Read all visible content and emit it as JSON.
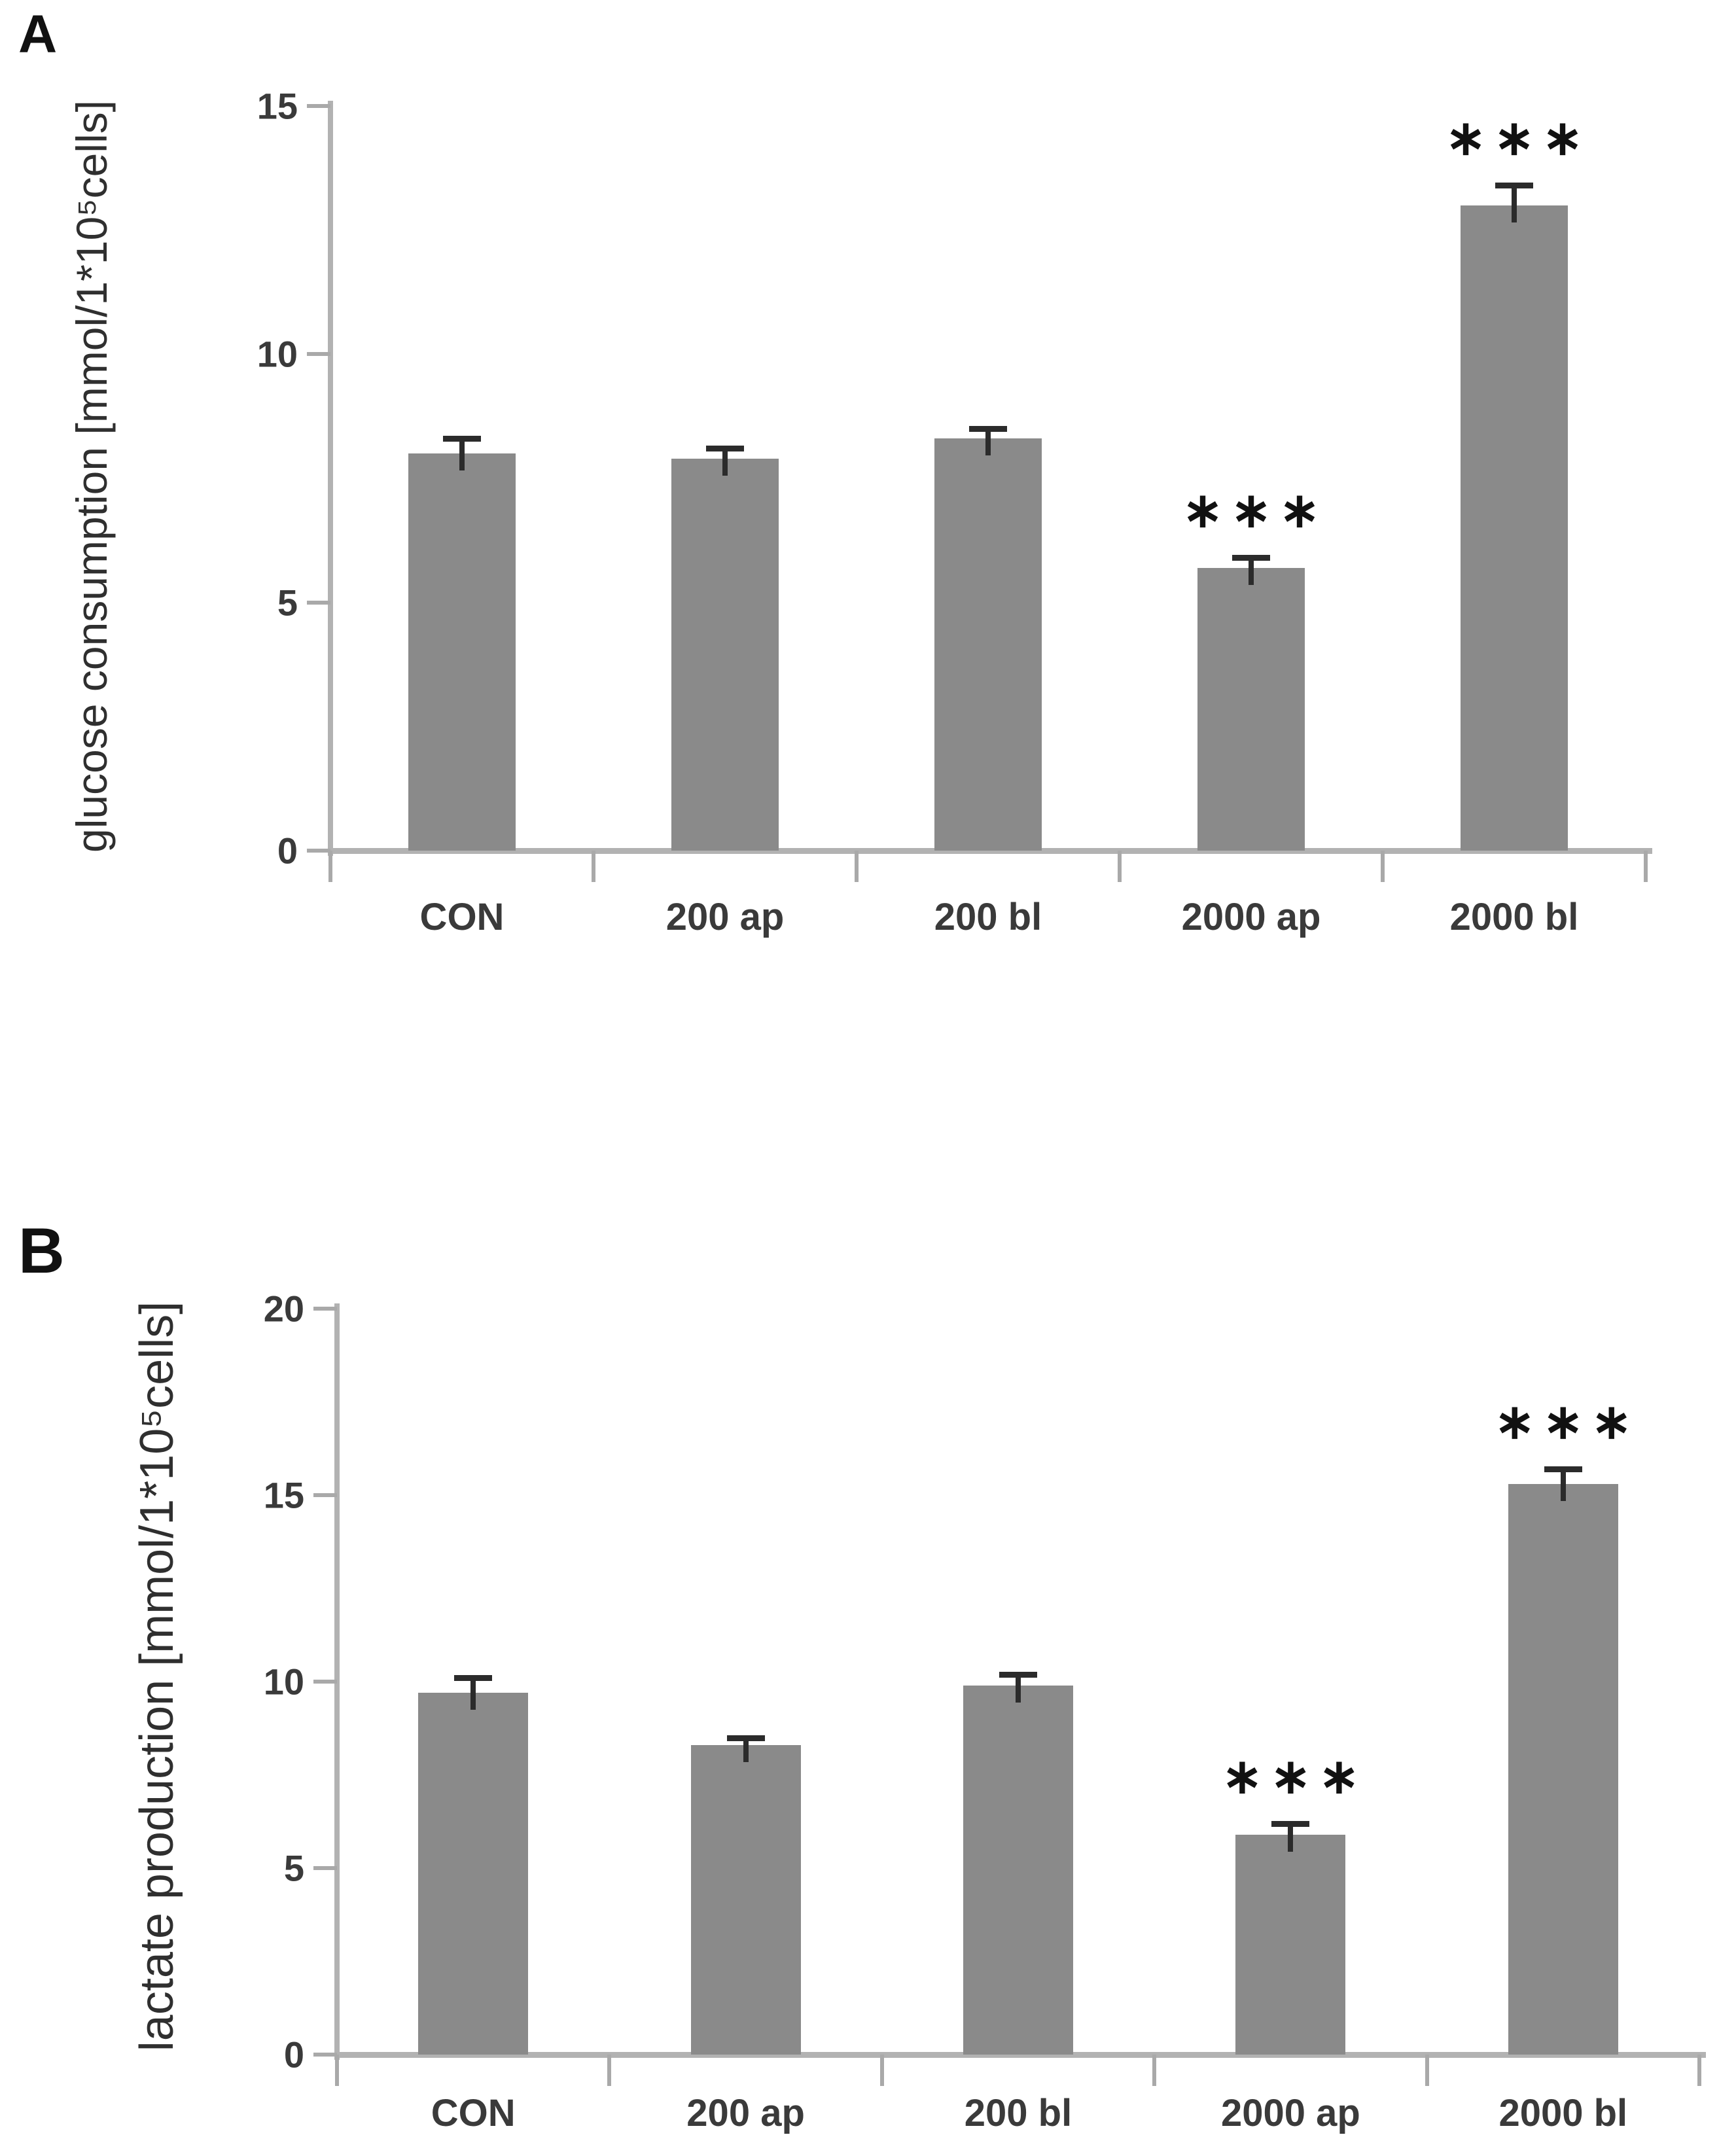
{
  "panels": [
    {
      "letter": "A"
    },
    {
      "letter": "B"
    }
  ],
  "chart_data": [
    {
      "type": "bar",
      "title": "",
      "ylabel": "glucose consumption [mmol/1*10⁵cells]",
      "xlabel": "",
      "categories": [
        "CON",
        "200 ap",
        "200 bl",
        "2000 ap",
        "2000 bl"
      ],
      "values": [
        8.0,
        7.9,
        8.3,
        5.7,
        13.0
      ],
      "errors": [
        0.3,
        0.2,
        0.2,
        0.2,
        0.4
      ],
      "significance": [
        "",
        "",
        "",
        "***",
        "***"
      ],
      "ylim": [
        0,
        15
      ],
      "yticks": [
        0,
        5,
        10,
        15
      ],
      "grid": "off",
      "legend": "none",
      "bar_color": "#8a8a8a",
      "axis_color": "#b2b2b2",
      "error_bar_color": "#2b2b2b"
    },
    {
      "type": "bar",
      "title": "",
      "ylabel": "lactate production [mmol/1*10⁵cells]",
      "xlabel": "",
      "categories": [
        "CON",
        "200 ap",
        "200 bl",
        "2000 ap",
        "2000 bl"
      ],
      "values": [
        9.7,
        8.3,
        9.9,
        5.9,
        15.3
      ],
      "errors": [
        0.4,
        0.2,
        0.3,
        0.3,
        0.4
      ],
      "significance": [
        "",
        "",
        "",
        "***",
        "***"
      ],
      "ylim": [
        0,
        20
      ],
      "yticks": [
        0,
        5,
        10,
        15,
        20
      ],
      "grid": "off",
      "legend": "none",
      "bar_color": "#8a8a8a",
      "axis_color": "#b2b2b2",
      "error_bar_color": "#2b2b2b"
    }
  ]
}
